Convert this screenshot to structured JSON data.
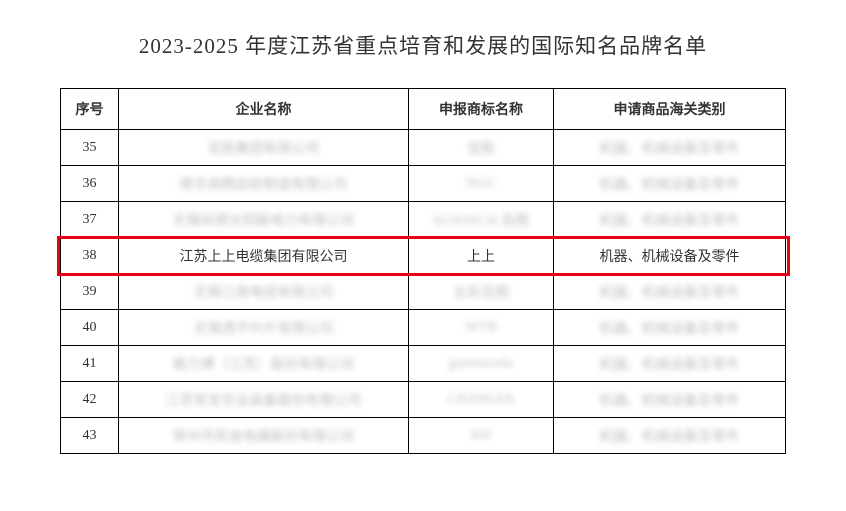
{
  "title": "2023-2025 年度江苏省重点培育和发展的国际知名品牌名单",
  "table": {
    "headers": {
      "seq": "序号",
      "company": "企业名称",
      "trademark": "申报商标名称",
      "category": "申请商品海关类别"
    },
    "rows": [
      {
        "seq": "35",
        "company": "宝胜集团有限公司",
        "trademark": "宝胜",
        "category": "机器、机械设备及零件",
        "blurred": true
      },
      {
        "seq": "36",
        "company": "南京高精齿轮制造有限公司",
        "trademark": "NGC",
        "category": "机器、机械设备及零件",
        "blurred": true
      },
      {
        "seq": "37",
        "company": "无锡尚德太阳能电力有限公司",
        "trademark": "SUNTECH 及图",
        "category": "机器、机械设备及零件",
        "blurred": true
      },
      {
        "seq": "38",
        "company": "江苏上上电缆集团有限公司",
        "trademark": "上上",
        "category": "机器、机械设备及零件",
        "blurred": false
      },
      {
        "seq": "39",
        "company": "无锡江南电缆有限公司",
        "trademark": "五彩及图",
        "category": "机器、机械设备及零件",
        "blurred": true
      },
      {
        "seq": "40",
        "company": "无锡透平叶片有限公司",
        "trademark": "WTB",
        "category": "机器、机械设备及零件",
        "blurred": true
      },
      {
        "seq": "41",
        "company": "格力博（江苏）股份有限公司",
        "trademark": "greenworks",
        "category": "机器、机械设备及零件",
        "blurred": true
      },
      {
        "seq": "42",
        "company": "江苏常发农业装备股份有限公司",
        "trademark": "CHANGFA",
        "category": "机器、机械设备及零件",
        "blurred": true
      },
      {
        "seq": "43",
        "company": "常州市凯迪电器股份有限公司",
        "trademark": "KD",
        "category": "机器、机械设备及零件",
        "blurred": true
      }
    ],
    "highlight_index": 3,
    "highlight_color": "#e60012"
  }
}
